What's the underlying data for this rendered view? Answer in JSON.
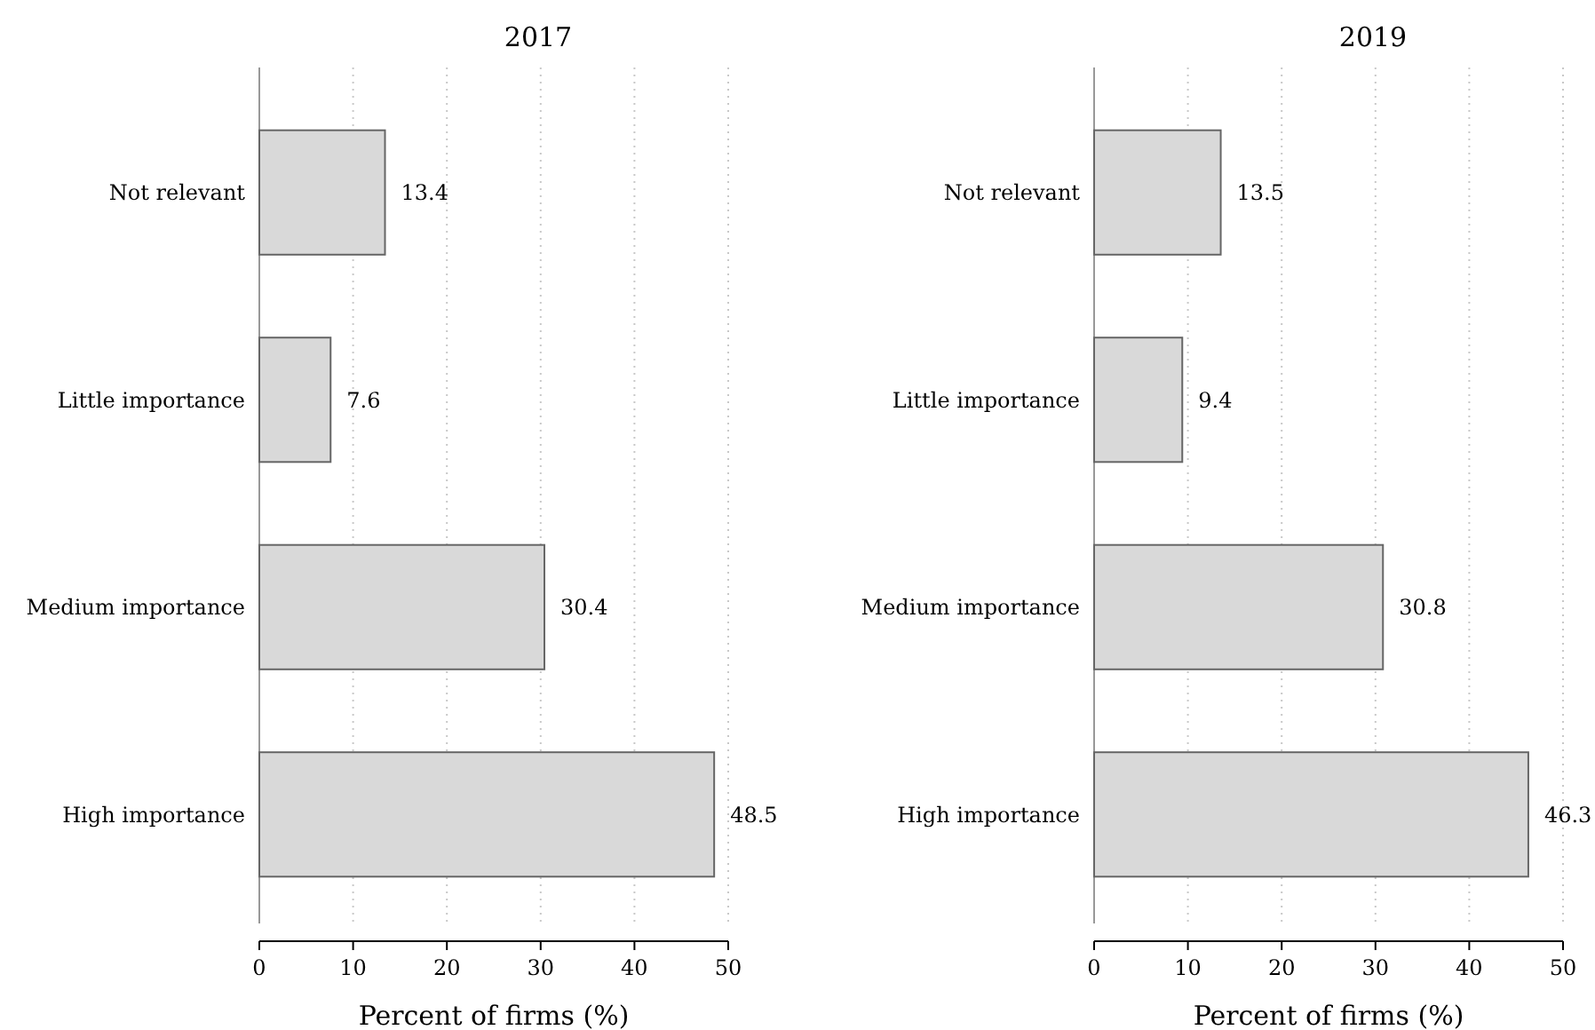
{
  "chart_data": [
    {
      "type": "bar",
      "orientation": "horizontal",
      "title": "2017",
      "xlabel": "Percent of firms (%)",
      "categories": [
        "Not relevant",
        "Little importance",
        "Medium importance",
        "High importance"
      ],
      "values": [
        13.4,
        7.6,
        30.4,
        48.5
      ],
      "color": "#d9d9d9",
      "xlim": [
        0,
        50
      ],
      "xticks": [
        0,
        10,
        20,
        30,
        40,
        50
      ],
      "grid": "x",
      "data_labels": true
    },
    {
      "type": "bar",
      "orientation": "horizontal",
      "title": "2019",
      "xlabel": "Percent of firms (%)",
      "categories": [
        "Not relevant",
        "Little importance",
        "Medium importance",
        "High importance"
      ],
      "values": [
        13.5,
        9.4,
        30.8,
        46.3
      ],
      "color": "#d9d9d9",
      "xlim": [
        0,
        50
      ],
      "xticks": [
        0,
        10,
        20,
        30,
        40,
        50
      ],
      "grid": "x",
      "data_labels": true
    }
  ]
}
